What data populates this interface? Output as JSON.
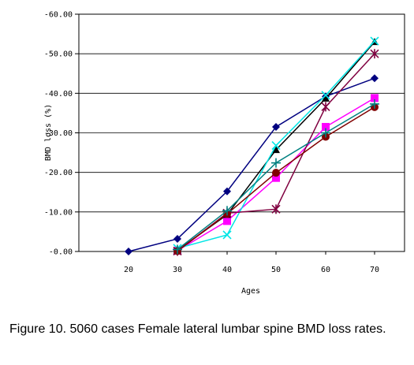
{
  "caption": "Figure 10. 5060 cases Female lateral lumbar spine BMD loss rates.",
  "chart_data": {
    "type": "line",
    "xlabel": "Ages",
    "ylabel": "BMD loss (%)",
    "x": [
      20,
      30,
      40,
      50,
      60,
      70
    ],
    "x_tick_labels": [
      "20",
      "30",
      "40",
      "50",
      "60",
      "70"
    ],
    "ylim": [
      0,
      -60
    ],
    "y_ticks": [
      0,
      -10,
      -20,
      -30,
      -40,
      -50,
      -60
    ],
    "y_tick_labels": [
      "-0.00",
      "-10.00",
      "-20.00",
      "-30.00",
      "-40.00",
      "-50.00",
      "-60.00"
    ],
    "grid": "horizontal",
    "legend": "none",
    "series": [
      {
        "marker": "diamond",
        "color": "#000080",
        "values": [
          0,
          -3.2,
          -15.2,
          -31.5,
          -39.2,
          -43.8
        ]
      },
      {
        "marker": "square",
        "color": "#ff00ff",
        "values": [
          null,
          -0.2,
          -7.7,
          -18.6,
          -31.5,
          -38.8
        ]
      },
      {
        "marker": "triangle",
        "color": "#000000",
        "values": [
          null,
          -0.3,
          -9.3,
          -25.7,
          -38.7,
          -53.0
        ]
      },
      {
        "marker": "x",
        "color": "#00e5e5",
        "values": [
          null,
          -0.8,
          -4.2,
          -26.8,
          -39.5,
          -53.2
        ]
      },
      {
        "marker": "asterisk",
        "color": "#800040",
        "values": [
          null,
          -0.1,
          -9.7,
          -10.7,
          -36.6,
          -50.0
        ]
      },
      {
        "marker": "circle",
        "color": "#800000",
        "values": [
          null,
          -0.1,
          -9.5,
          -19.9,
          -29.0,
          -36.5
        ]
      },
      {
        "marker": "plus",
        "color": "#008080",
        "values": [
          null,
          -0.5,
          -10.3,
          -22.4,
          -30.0,
          -37.3
        ]
      }
    ]
  }
}
